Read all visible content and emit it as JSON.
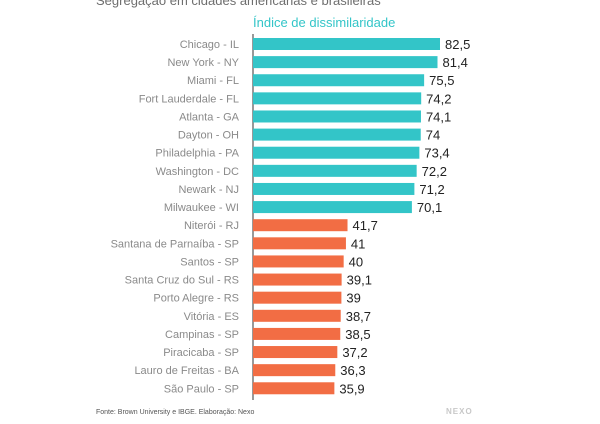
{
  "title": "Segregação em cidades americanas e brasileiras",
  "legend_label": "Índice de dissimilaridade",
  "footer": "Fonte: Brown University e IBGE. Elaboração: Nexo",
  "brand": "NEXO",
  "colors": {
    "us": "#33c5c8",
    "br": "#f26d44",
    "label": "#8a8a8a",
    "value": "#222222",
    "axis": "#333333"
  },
  "chart_data": {
    "type": "bar",
    "orientation": "horizontal",
    "title": "Segregação em cidades americanas e brasileiras",
    "xlabel": "Índice de dissimilaridade",
    "ylabel": "",
    "xlim": [
      0,
      82.5
    ],
    "categories": [
      "Chicago - IL",
      "New York - NY",
      "Miami - FL",
      "Fort Lauderdale - FL",
      "Atlanta - GA",
      "Dayton - OH",
      "Philadelphia - PA",
      "Washington - DC",
      "Newark - NJ",
      "Milwaukee - WI",
      "Niterói - RJ",
      "Santana de Parnaíba - SP",
      "Santos - SP",
      "Santa Cruz do Sul - RS",
      "Porto Alegre - RS",
      "Vitória - ES",
      "Campinas - SP",
      "Piracicaba - SP",
      "Lauro de Freitas - BA",
      "São Paulo - SP"
    ],
    "values": [
      82.5,
      81.4,
      75.5,
      74.2,
      74.1,
      74,
      73.4,
      72.2,
      71.2,
      70.1,
      41.7,
      41,
      40,
      39.1,
      39,
      38.7,
      38.5,
      37.2,
      36.3,
      35.9
    ],
    "value_labels": [
      "82,5",
      "81,4",
      "75,5",
      "74,2",
      "74,1",
      "74",
      "73,4",
      "72,2",
      "71,2",
      "70,1",
      "41,7",
      "41",
      "40",
      "39,1",
      "39",
      "38,7",
      "38,5",
      "37,2",
      "36,3",
      "35,9"
    ],
    "groups": [
      "us",
      "us",
      "us",
      "us",
      "us",
      "us",
      "us",
      "us",
      "us",
      "us",
      "br",
      "br",
      "br",
      "br",
      "br",
      "br",
      "br",
      "br",
      "br",
      "br"
    ],
    "legend": "top-left",
    "grid": false
  }
}
